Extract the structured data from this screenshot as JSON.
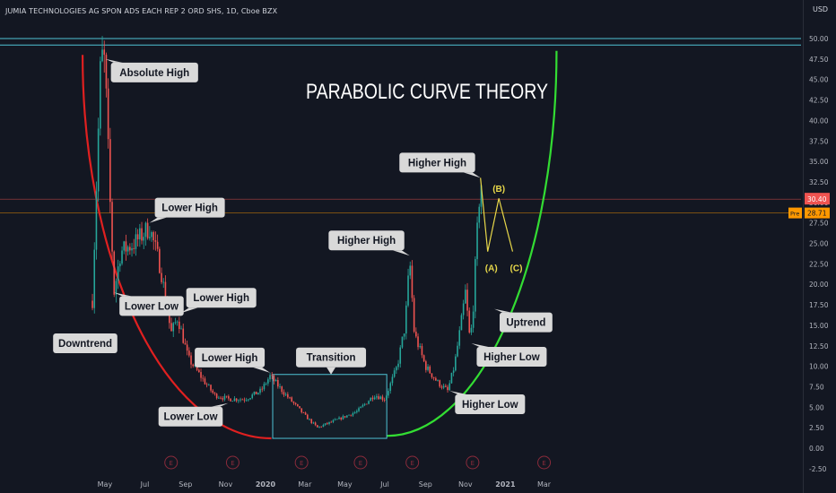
{
  "symbol_title": "JUMIA TECHNOLOGIES AG SPON ADS EACH REP 2 ORD SHS, 1D, Cboe BZX",
  "currency": "USD",
  "headline": "PARABOLIC CURVE THEORY",
  "price_badges": {
    "last": "30.40",
    "pre_label": "Pre",
    "pre": "28.71"
  },
  "colors": {
    "background": "#131722",
    "up_candle": "#26a69a",
    "down_candle": "#ef5350",
    "downtrend_arc": "#e02020",
    "uptrend_arc": "#33dd33",
    "resistance_lines": "#4fc3d4",
    "projection": "#e8d84a",
    "label_bg": "#d9d9d9",
    "earnings_marker": "#8a2b3b"
  },
  "chart_data": {
    "type": "candlestick",
    "title": "PARABOLIC CURVE THEORY",
    "x_ticks": [
      "May",
      "Jul",
      "Sep",
      "Nov",
      "2020",
      "Mar",
      "May",
      "Jul",
      "Sep",
      "Nov",
      "2021",
      "Mar"
    ],
    "y_ticks": [
      "50.00",
      "47.50",
      "45.00",
      "42.50",
      "40.00",
      "37.50",
      "35.00",
      "32.50",
      "30.00",
      "27.50",
      "25.00",
      "22.50",
      "20.00",
      "17.50",
      "15.00",
      "12.50",
      "10.00",
      "7.50",
      "5.00",
      "2.50",
      "0.00",
      "-2.50"
    ],
    "ylim": [
      -2.5,
      50
    ],
    "approx_price_path": [
      {
        "t": "2019-04-12",
        "p": 18
      },
      {
        "t": "2019-04-25",
        "p": 48
      },
      {
        "t": "2019-05-01",
        "p": 47
      },
      {
        "t": "2019-05-09",
        "p": 30
      },
      {
        "t": "2019-05-15",
        "p": 19
      },
      {
        "t": "2019-05-25",
        "p": 24
      },
      {
        "t": "2019-06-15",
        "p": 25
      },
      {
        "t": "2019-07-08",
        "p": 27
      },
      {
        "t": "2019-07-25",
        "p": 22
      },
      {
        "t": "2019-08-10",
        "p": 14
      },
      {
        "t": "2019-08-20",
        "p": 16
      },
      {
        "t": "2019-09-05",
        "p": 11
      },
      {
        "t": "2019-10-01",
        "p": 8
      },
      {
        "t": "2019-10-15",
        "p": 6.5
      },
      {
        "t": "2019-11-05",
        "p": 6
      },
      {
        "t": "2019-12-01",
        "p": 6
      },
      {
        "t": "2019-12-25",
        "p": 7
      },
      {
        "t": "2020-01-08",
        "p": 8.8
      },
      {
        "t": "2020-02-01",
        "p": 6.5
      },
      {
        "t": "2020-03-01",
        "p": 4
      },
      {
        "t": "2020-03-20",
        "p": 2.5
      },
      {
        "t": "2020-04-20",
        "p": 3.5
      },
      {
        "t": "2020-05-20",
        "p": 4.5
      },
      {
        "t": "2020-06-15",
        "p": 6.5
      },
      {
        "t": "2020-07-01",
        "p": 6
      },
      {
        "t": "2020-07-20",
        "p": 10
      },
      {
        "t": "2020-08-01",
        "p": 15
      },
      {
        "t": "2020-08-08",
        "p": 23
      },
      {
        "t": "2020-08-15",
        "p": 14
      },
      {
        "t": "2020-09-01",
        "p": 10
      },
      {
        "t": "2020-09-20",
        "p": 8
      },
      {
        "t": "2020-10-05",
        "p": 7
      },
      {
        "t": "2020-10-15",
        "p": 10
      },
      {
        "t": "2020-10-25",
        "p": 15
      },
      {
        "t": "2020-11-01",
        "p": 19
      },
      {
        "t": "2020-11-08",
        "p": 13
      },
      {
        "t": "2020-11-12",
        "p": 16
      },
      {
        "t": "2020-11-18",
        "p": 25
      },
      {
        "t": "2020-11-24",
        "p": 33
      },
      {
        "t": "2020-11-28",
        "p": 30.4
      }
    ],
    "projection": [
      {
        "label": "(A)",
        "t": "2020-12-05",
        "p": 24
      },
      {
        "label": "(B)",
        "t": "2020-12-22",
        "p": 30.5
      },
      {
        "label": "(C)",
        "t": "2021-01-12",
        "p": 24
      }
    ],
    "resistance_levels": [
      50.0,
      49.2
    ],
    "price_lines": [
      30.4,
      28.71
    ],
    "transition_box": {
      "t0": "2020-01-12",
      "t1": "2020-07-04",
      "p0": 1.2,
      "p1": 9.0
    },
    "earnings_markers": [
      "2019-08-10",
      "2019-11-12",
      "2020-02-25",
      "2020-05-25",
      "2020-08-12",
      "2020-11-12",
      "2021-03-01"
    ],
    "downtrend_arc": {
      "from": {
        "t": "2019-03-28",
        "p": 48
      },
      "bottom": {
        "t": "2020-01-10",
        "p": 1.2
      }
    },
    "uptrend_arc": {
      "from": {
        "t": "2020-07-04",
        "p": 1.5
      },
      "to": {
        "t": "2021-03-20",
        "p": 48.5
      }
    },
    "annotations": [
      {
        "text": "Absolute High",
        "t": "2019-05-02",
        "p": 47.5,
        "side": "tl"
      },
      {
        "text": "Lower High",
        "t": "2019-07-08",
        "p": 27.5,
        "side": "bl"
      },
      {
        "text": "Lower High",
        "t": "2019-08-25",
        "p": 16.5,
        "side": "bl"
      },
      {
        "text": "Lower High",
        "t": "2020-01-08",
        "p": 9.2,
        "side": "br"
      },
      {
        "text": "Lower Low",
        "t": "2019-05-15",
        "p": 19,
        "side": "tl"
      },
      {
        "text": "Lower Low",
        "t": "2019-11-05",
        "p": 5.5,
        "side": "tr"
      },
      {
        "text": "Downtrend",
        "t": "2019-04-01",
        "p": 14,
        "side": "none"
      },
      {
        "text": "Transition",
        "t": "2020-04-10",
        "p": 9.0,
        "side": "bc"
      },
      {
        "text": "Higher High",
        "t": "2020-08-08",
        "p": 23.5,
        "side": "br"
      },
      {
        "text": "Higher High",
        "t": "2020-11-24",
        "p": 33,
        "side": "br"
      },
      {
        "text": "Higher Low",
        "t": "2020-10-08",
        "p": 7,
        "side": "tl"
      },
      {
        "text": "Higher Low",
        "t": "2020-11-10",
        "p": 12.8,
        "side": "tl"
      },
      {
        "text": "Uptrend",
        "t": "2020-12-15",
        "p": 17,
        "side": "tl"
      }
    ]
  }
}
